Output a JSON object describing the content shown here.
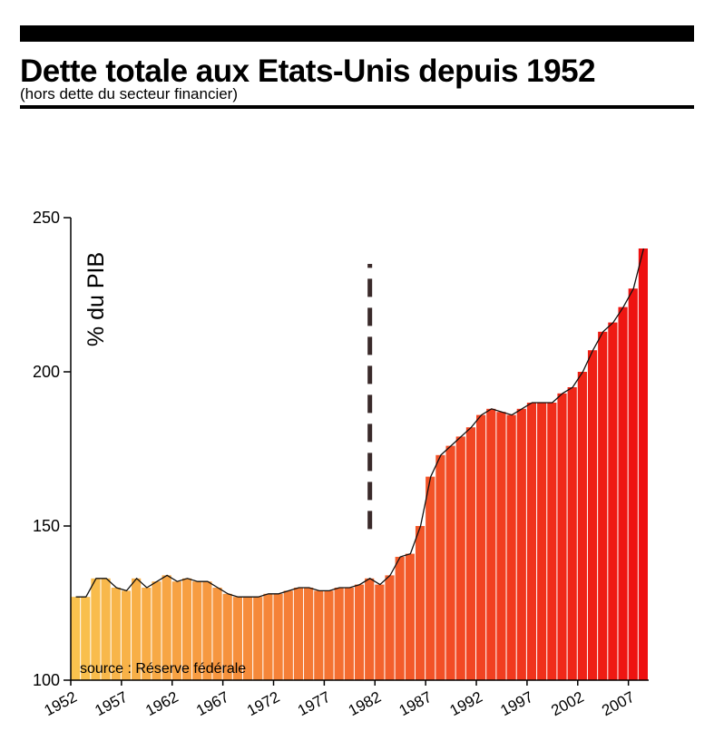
{
  "chart_data": {
    "type": "area",
    "title": "Dette totale aux Etats-Unis depuis 1952",
    "subtitle": "(hors dette du secteur financier)",
    "y_label": "% du PIB",
    "source": "source : Réserve fédérale",
    "x": [
      1952,
      1953,
      1954,
      1955,
      1956,
      1957,
      1958,
      1959,
      1960,
      1961,
      1962,
      1963,
      1964,
      1965,
      1966,
      1967,
      1968,
      1969,
      1970,
      1971,
      1972,
      1973,
      1974,
      1975,
      1976,
      1977,
      1978,
      1979,
      1980,
      1981,
      1982,
      1983,
      1984,
      1985,
      1986,
      1987,
      1988,
      1989,
      1990,
      1991,
      1992,
      1993,
      1994,
      1995,
      1996,
      1997,
      1998,
      1999,
      2000,
      2001,
      2002,
      2003,
      2004,
      2005,
      2006,
      2007,
      2008
    ],
    "values": [
      127,
      127,
      133,
      133,
      130,
      129,
      133,
      130,
      132,
      134,
      132,
      133,
      132,
      132,
      130,
      128,
      127,
      127,
      127,
      128,
      128,
      129,
      130,
      130,
      129,
      129,
      130,
      130,
      131,
      133,
      131,
      134,
      140,
      141,
      150,
      166,
      173,
      176,
      179,
      182,
      186,
      188,
      187,
      186,
      188,
      190,
      190,
      190,
      193,
      195,
      200,
      207,
      213,
      216,
      221,
      227,
      240
    ],
    "color_start": "#f9c24e",
    "color_end": "#ee1010",
    "reference_line": {
      "x": 1981.5,
      "y": [
        149,
        235
      ],
      "color": "#3a2a2a"
    },
    "xlim": [
      1952,
      2009
    ],
    "xticks": [
      1952,
      1957,
      1962,
      1967,
      1972,
      1977,
      1982,
      1987,
      1992,
      1997,
      2002,
      2007
    ],
    "ylim": [
      100,
      250
    ],
    "yticks": [
      100,
      150,
      200,
      250
    ]
  }
}
